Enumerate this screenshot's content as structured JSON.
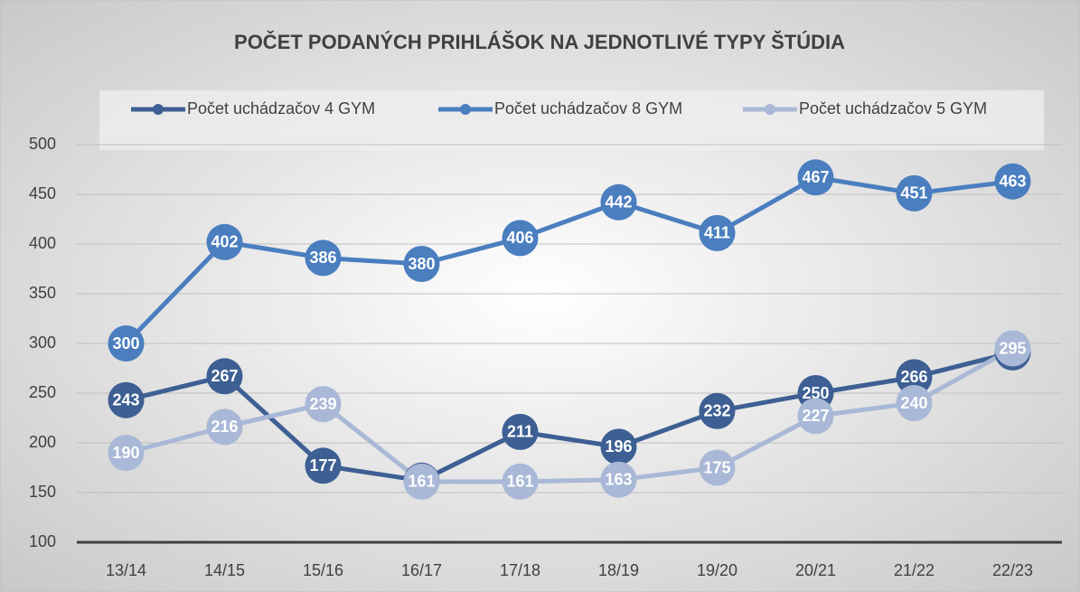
{
  "chart_data": {
    "type": "line",
    "title": "POČET PODANÝCH PRIHLÁŠOK NA JEDNOTLIVÉ TYPY ŠTÚDIA",
    "categories": [
      "13/14",
      "14/15",
      "15/16",
      "16/17",
      "17/18",
      "18/19",
      "19/20",
      "20/21",
      "21/22",
      "22/23"
    ],
    "series": [
      {
        "name": "Počet uchádzačov 4 GYM",
        "color": "#3d5f93",
        "values": [
          243,
          267,
          177,
          162,
          211,
          196,
          232,
          250,
          266,
          291
        ]
      },
      {
        "name": "Počet uchádzačov 8 GYM",
        "color": "#4a7ebf",
        "values": [
          300,
          402,
          386,
          380,
          406,
          442,
          411,
          467,
          451,
          463
        ]
      },
      {
        "name": "Počet uchádzačov 5 GYM",
        "color": "#a9b8d6",
        "values": [
          190,
          216,
          239,
          161,
          161,
          163,
          175,
          227,
          240,
          295
        ]
      }
    ],
    "ylim": [
      100,
      500
    ],
    "yticks": [
      100,
      150,
      200,
      250,
      300,
      350,
      400,
      450,
      500
    ],
    "grid": true,
    "legend": "top"
  }
}
